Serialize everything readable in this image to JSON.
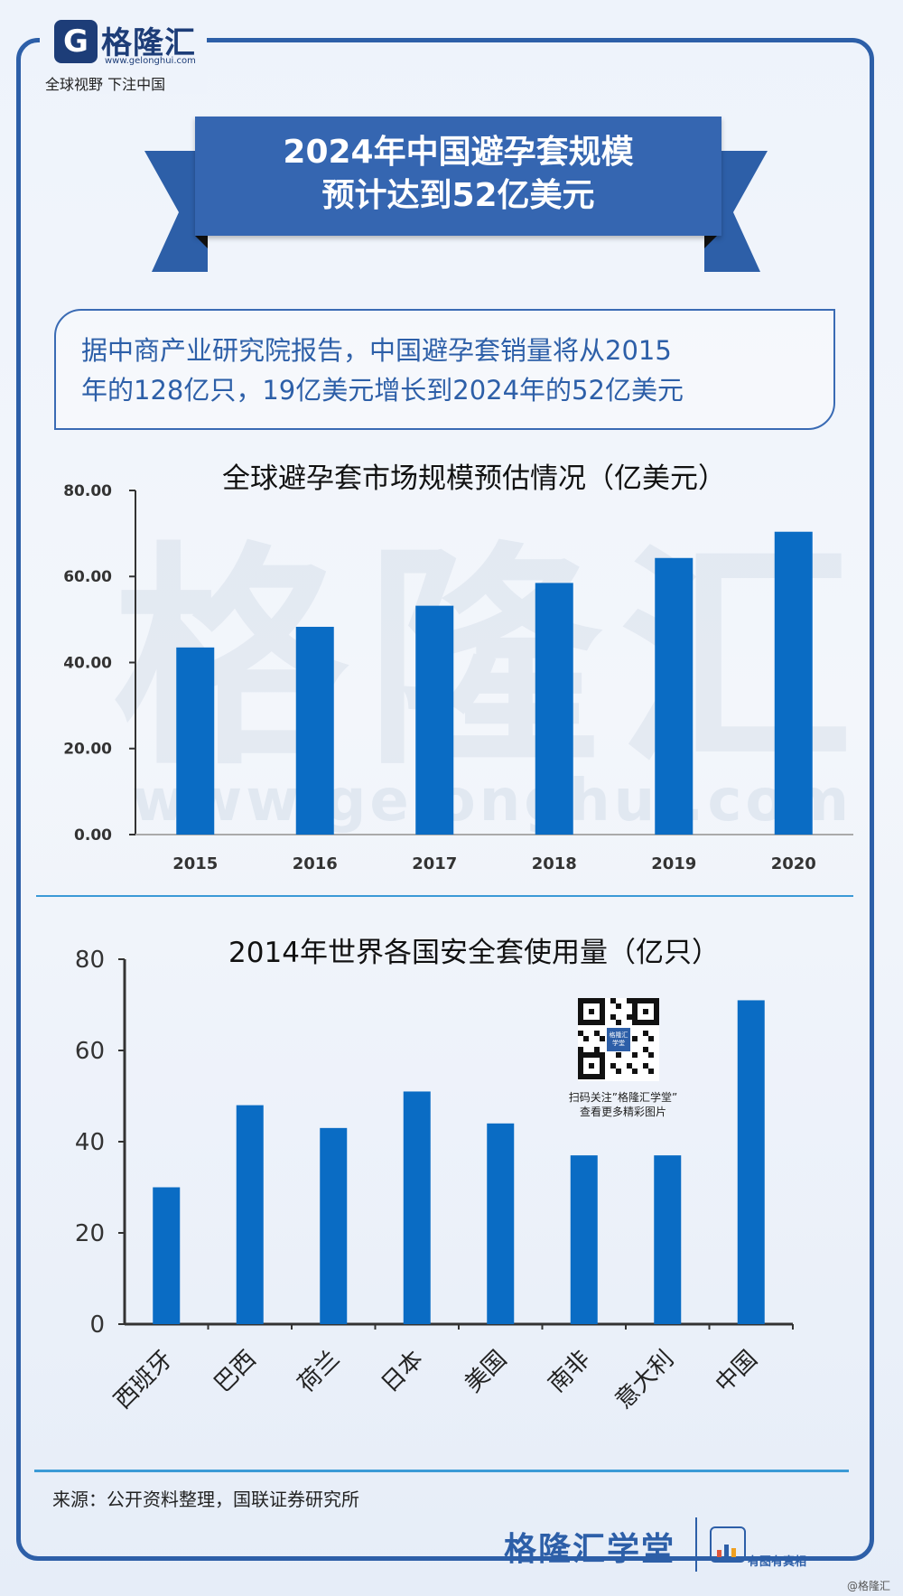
{
  "header": {
    "logo_mark": "G",
    "logo_name": "格隆汇",
    "logo_url": "www.gelonghui.com",
    "slogan": "全球视野 下注中国"
  },
  "title": {
    "line1": "2024年中国避孕套规模",
    "line2": "预计达到52亿美元"
  },
  "summary": {
    "line1": "据中商产业研究院报告，中国避孕套销量将从2015",
    "line2": "年的128亿只，19亿美元增长到2024年的52亿美元"
  },
  "chart_data": [
    {
      "type": "bar",
      "title": "全球避孕套市场规模预估情况（亿美元）",
      "categories": [
        "2015",
        "2016",
        "2017",
        "2018",
        "2019",
        "2020"
      ],
      "values": [
        43.5,
        48.3,
        53.2,
        58.5,
        64.3,
        70.4
      ],
      "ylim": [
        0,
        80
      ],
      "yticks": [
        "0.00",
        "20.00",
        "40.00",
        "60.00",
        "80.00"
      ],
      "color": "#0a6cc4"
    },
    {
      "type": "bar",
      "title": "2014年世界各国安全套使用量（亿只）",
      "categories": [
        "西班牙",
        "巴西",
        "荷兰",
        "日本",
        "美国",
        "南非",
        "意大利",
        "中国"
      ],
      "values": [
        30,
        48,
        43,
        51,
        44,
        37,
        37,
        71
      ],
      "ylim": [
        0,
        80
      ],
      "yticks": [
        "0",
        "20",
        "40",
        "60",
        "80"
      ],
      "color": "#0a6cc4"
    }
  ],
  "watermark": {
    "brand": "格隆汇",
    "url": "www.gelonghui.com"
  },
  "qr": {
    "center_text": "格隆汇学堂",
    "caption_line1": "扫码关注”格隆汇学堂”",
    "caption_line2": "查看更多精彩图片"
  },
  "footer": {
    "source": "来源：公开资料整理，国联证券研究所",
    "brand": "格隆汇学堂",
    "tagline": "有图有真相",
    "corner": "@格隆汇"
  }
}
